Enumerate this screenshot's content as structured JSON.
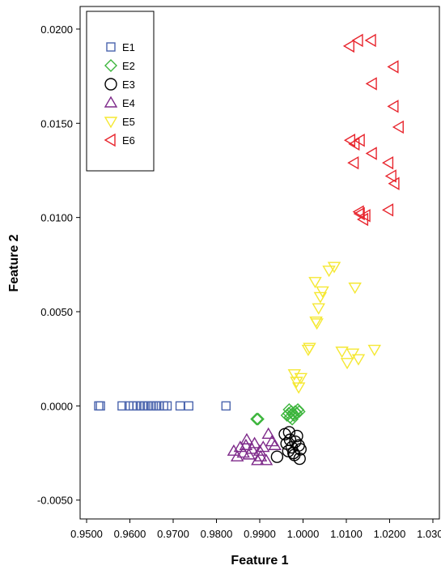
{
  "chart_data": {
    "type": "scatter",
    "title": "",
    "xlabel": "Feature 1",
    "ylabel": "Feature 2",
    "xlim": [
      0.9485,
      1.0315
    ],
    "ylim": [
      -0.006,
      0.0212
    ],
    "xticks": [
      0.95,
      0.96,
      0.97,
      0.98,
      0.99,
      1.0,
      1.01,
      1.02,
      1.03
    ],
    "xtick_labels": [
      "0.9500",
      "0.9600",
      "0.9700",
      "0.9800",
      "0.9900",
      "1.0000",
      "1.0100",
      "1.0200",
      "1.0300"
    ],
    "yticks": [
      -0.005,
      0.0,
      0.005,
      0.01,
      0.015,
      0.02
    ],
    "ytick_labels": [
      "-0.0050",
      "0.0000",
      "0.0050",
      "0.0100",
      "0.0150",
      "0.0200"
    ],
    "grid": false,
    "legend_position": "top-left",
    "series": [
      {
        "name": "E1",
        "marker": "square",
        "color": "#4a64ad",
        "points": [
          [
            0.9528,
            0.0
          ],
          [
            0.9532,
            0.0
          ],
          [
            0.9582,
            0.0
          ],
          [
            0.9598,
            0.0
          ],
          [
            0.9608,
            0.0
          ],
          [
            0.9616,
            0.0
          ],
          [
            0.9624,
            0.0
          ],
          [
            0.9632,
            0.0
          ],
          [
            0.964,
            0.0
          ],
          [
            0.9648,
            0.0
          ],
          [
            0.9654,
            0.0
          ],
          [
            0.9662,
            0.0
          ],
          [
            0.9668,
            0.0
          ],
          [
            0.9678,
            0.0
          ],
          [
            0.9686,
            0.0
          ],
          [
            0.9716,
            0.0
          ],
          [
            0.9736,
            0.0
          ],
          [
            0.9822,
            0.0
          ]
        ]
      },
      {
        "name": "E2",
        "marker": "diamond",
        "color": "#3cb53c",
        "points": [
          [
            0.9893,
            -0.0007
          ],
          [
            0.9896,
            -0.0007
          ],
          [
            0.9963,
            -0.0005
          ],
          [
            0.9967,
            -0.0004
          ],
          [
            0.997,
            -0.0006
          ],
          [
            0.9973,
            -0.0003
          ],
          [
            0.9976,
            -0.0004
          ],
          [
            0.9979,
            -0.0005
          ],
          [
            0.9982,
            -0.0003
          ],
          [
            0.9985,
            -0.0004
          ],
          [
            0.9988,
            -0.0002
          ],
          [
            0.9991,
            -0.0003
          ],
          [
            0.9975,
            -0.0007
          ],
          [
            0.9968,
            -0.0002
          ]
        ]
      },
      {
        "name": "E3",
        "marker": "circle",
        "color": "#000000",
        "points": [
          [
            0.994,
            -0.0027
          ],
          [
            0.9958,
            -0.0015
          ],
          [
            0.9962,
            -0.002
          ],
          [
            0.9966,
            -0.0024
          ],
          [
            0.997,
            -0.0018
          ],
          [
            0.9974,
            -0.0022
          ],
          [
            0.9978,
            -0.0025
          ],
          [
            0.9982,
            -0.0019
          ],
          [
            0.9986,
            -0.0016
          ],
          [
            0.999,
            -0.0021
          ],
          [
            0.9992,
            -0.0028
          ],
          [
            0.9994,
            -0.0023
          ],
          [
            0.9968,
            -0.0014
          ],
          [
            0.998,
            -0.0026
          ]
        ]
      },
      {
        "name": "E4",
        "marker": "triangle-up",
        "color": "#7e2a8a",
        "points": [
          [
            0.984,
            -0.0024
          ],
          [
            0.9848,
            -0.0027
          ],
          [
            0.9855,
            -0.0022
          ],
          [
            0.9862,
            -0.0025
          ],
          [
            0.9868,
            -0.0021
          ],
          [
            0.9875,
            -0.0026
          ],
          [
            0.9882,
            -0.0023
          ],
          [
            0.9888,
            -0.002
          ],
          [
            0.9895,
            -0.0029
          ],
          [
            0.9902,
            -0.0027
          ],
          [
            0.9908,
            -0.0022
          ],
          [
            0.9915,
            -0.0029
          ],
          [
            0.992,
            -0.0015
          ],
          [
            0.9928,
            -0.0019
          ],
          [
            0.9935,
            -0.0021
          ],
          [
            0.99,
            -0.0024
          ],
          [
            0.987,
            -0.0018
          ]
        ]
      },
      {
        "name": "E5",
        "marker": "triangle-down",
        "color": "#f5e832",
        "points": [
          [
            0.998,
            0.0017
          ],
          [
            0.9985,
            0.0013
          ],
          [
            0.999,
            0.001
          ],
          [
            0.9995,
            0.0015
          ],
          [
            1.0012,
            0.003
          ],
          [
            1.0015,
            0.0031
          ],
          [
            1.003,
            0.0045
          ],
          [
            1.0032,
            0.0044
          ],
          [
            1.0036,
            0.0052
          ],
          [
            1.004,
            0.0058
          ],
          [
            1.0028,
            0.0066
          ],
          [
            1.0045,
            0.0061
          ],
          [
            1.006,
            0.0072
          ],
          [
            1.0072,
            0.0074
          ],
          [
            1.009,
            0.0029
          ],
          [
            1.0102,
            0.0023
          ],
          [
            1.0115,
            0.0028
          ],
          [
            1.0128,
            0.0025
          ],
          [
            1.012,
            0.0063
          ],
          [
            1.0165,
            0.003
          ]
        ]
      },
      {
        "name": "E6",
        "marker": "triangle-left",
        "color": "#e8262e",
        "points": [
          [
            1.0108,
            0.0191
          ],
          [
            1.0128,
            0.0194
          ],
          [
            1.0158,
            0.0194
          ],
          [
            1.021,
            0.018
          ],
          [
            1.016,
            0.0171
          ],
          [
            1.021,
            0.0159
          ],
          [
            1.0222,
            0.0148
          ],
          [
            1.011,
            0.0141
          ],
          [
            1.012,
            0.0139
          ],
          [
            1.0132,
            0.0141
          ],
          [
            1.016,
            0.0134
          ],
          [
            1.0198,
            0.0129
          ],
          [
            1.0118,
            0.0129
          ],
          [
            1.0205,
            0.0122
          ],
          [
            1.0212,
            0.0118
          ],
          [
            1.013,
            0.0103
          ],
          [
            1.0132,
            0.0102
          ],
          [
            1.014,
            0.0099
          ],
          [
            1.0145,
            0.0101
          ],
          [
            1.0198,
            0.0104
          ]
        ]
      }
    ]
  }
}
